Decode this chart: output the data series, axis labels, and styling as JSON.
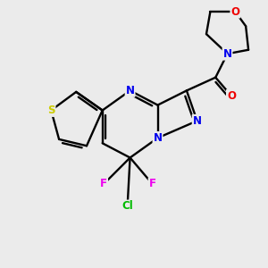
{
  "background_color": "#ebebeb",
  "atoms": {
    "colors": {
      "C": "#000000",
      "N": "#0000ee",
      "O": "#ee0000",
      "S": "#cccc00",
      "F": "#ee00ee",
      "Cl": "#00bb00"
    }
  },
  "figsize": [
    3.0,
    3.0
  ],
  "dpi": 100
}
